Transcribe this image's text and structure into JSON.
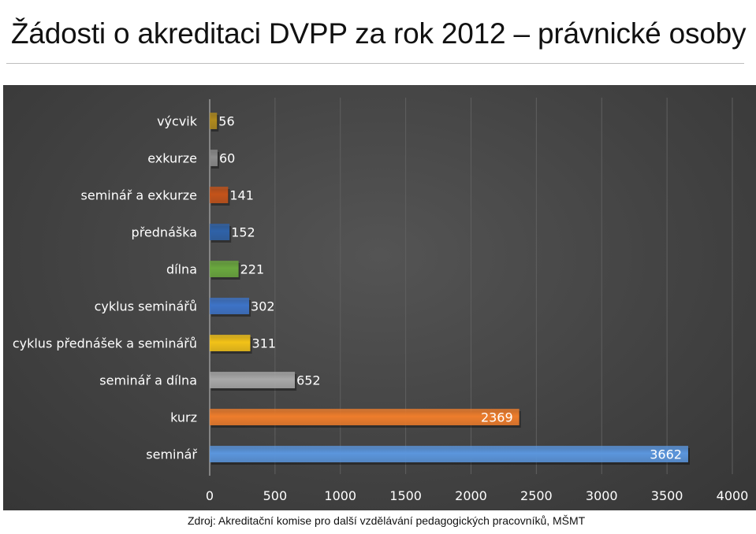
{
  "page": {
    "title": "Žádosti o akreditaci DVPP za rok 2012 – právnické osoby",
    "source": "Zdroj: Akreditační komise pro další vzdělávání pedagogických pracovníků, MŠMT"
  },
  "chart_data": {
    "type": "bar",
    "orientation": "horizontal",
    "title": "",
    "xlabel": "",
    "ylabel": "",
    "xlim": [
      0,
      4000
    ],
    "x_ticks": [
      0,
      500,
      1000,
      1500,
      2000,
      2500,
      3000,
      3500,
      4000
    ],
    "grid": true,
    "legend": "none",
    "categories": [
      "výcvik",
      "exkurze",
      "seminář a exkurze",
      "přednáška",
      "dílna",
      "cyklus seminářů",
      "cyklus přednášek a seminářů",
      "seminář a dílna",
      "kurz",
      "seminář"
    ],
    "values": [
      56,
      60,
      141,
      152,
      221,
      302,
      311,
      652,
      2369,
      3662
    ],
    "value_labels": [
      "56",
      "60",
      "141",
      "152",
      "221",
      "302",
      "311",
      "652",
      "2369",
      "3662"
    ],
    "colors": [
      "#b08a1e",
      "#8c8c8c",
      "#c4531a",
      "#2f62a8",
      "#6aa83e",
      "#3d73c7",
      "#f2c218",
      "#a9a9a9",
      "#ee7d2c",
      "#5b96dd"
    ]
  }
}
